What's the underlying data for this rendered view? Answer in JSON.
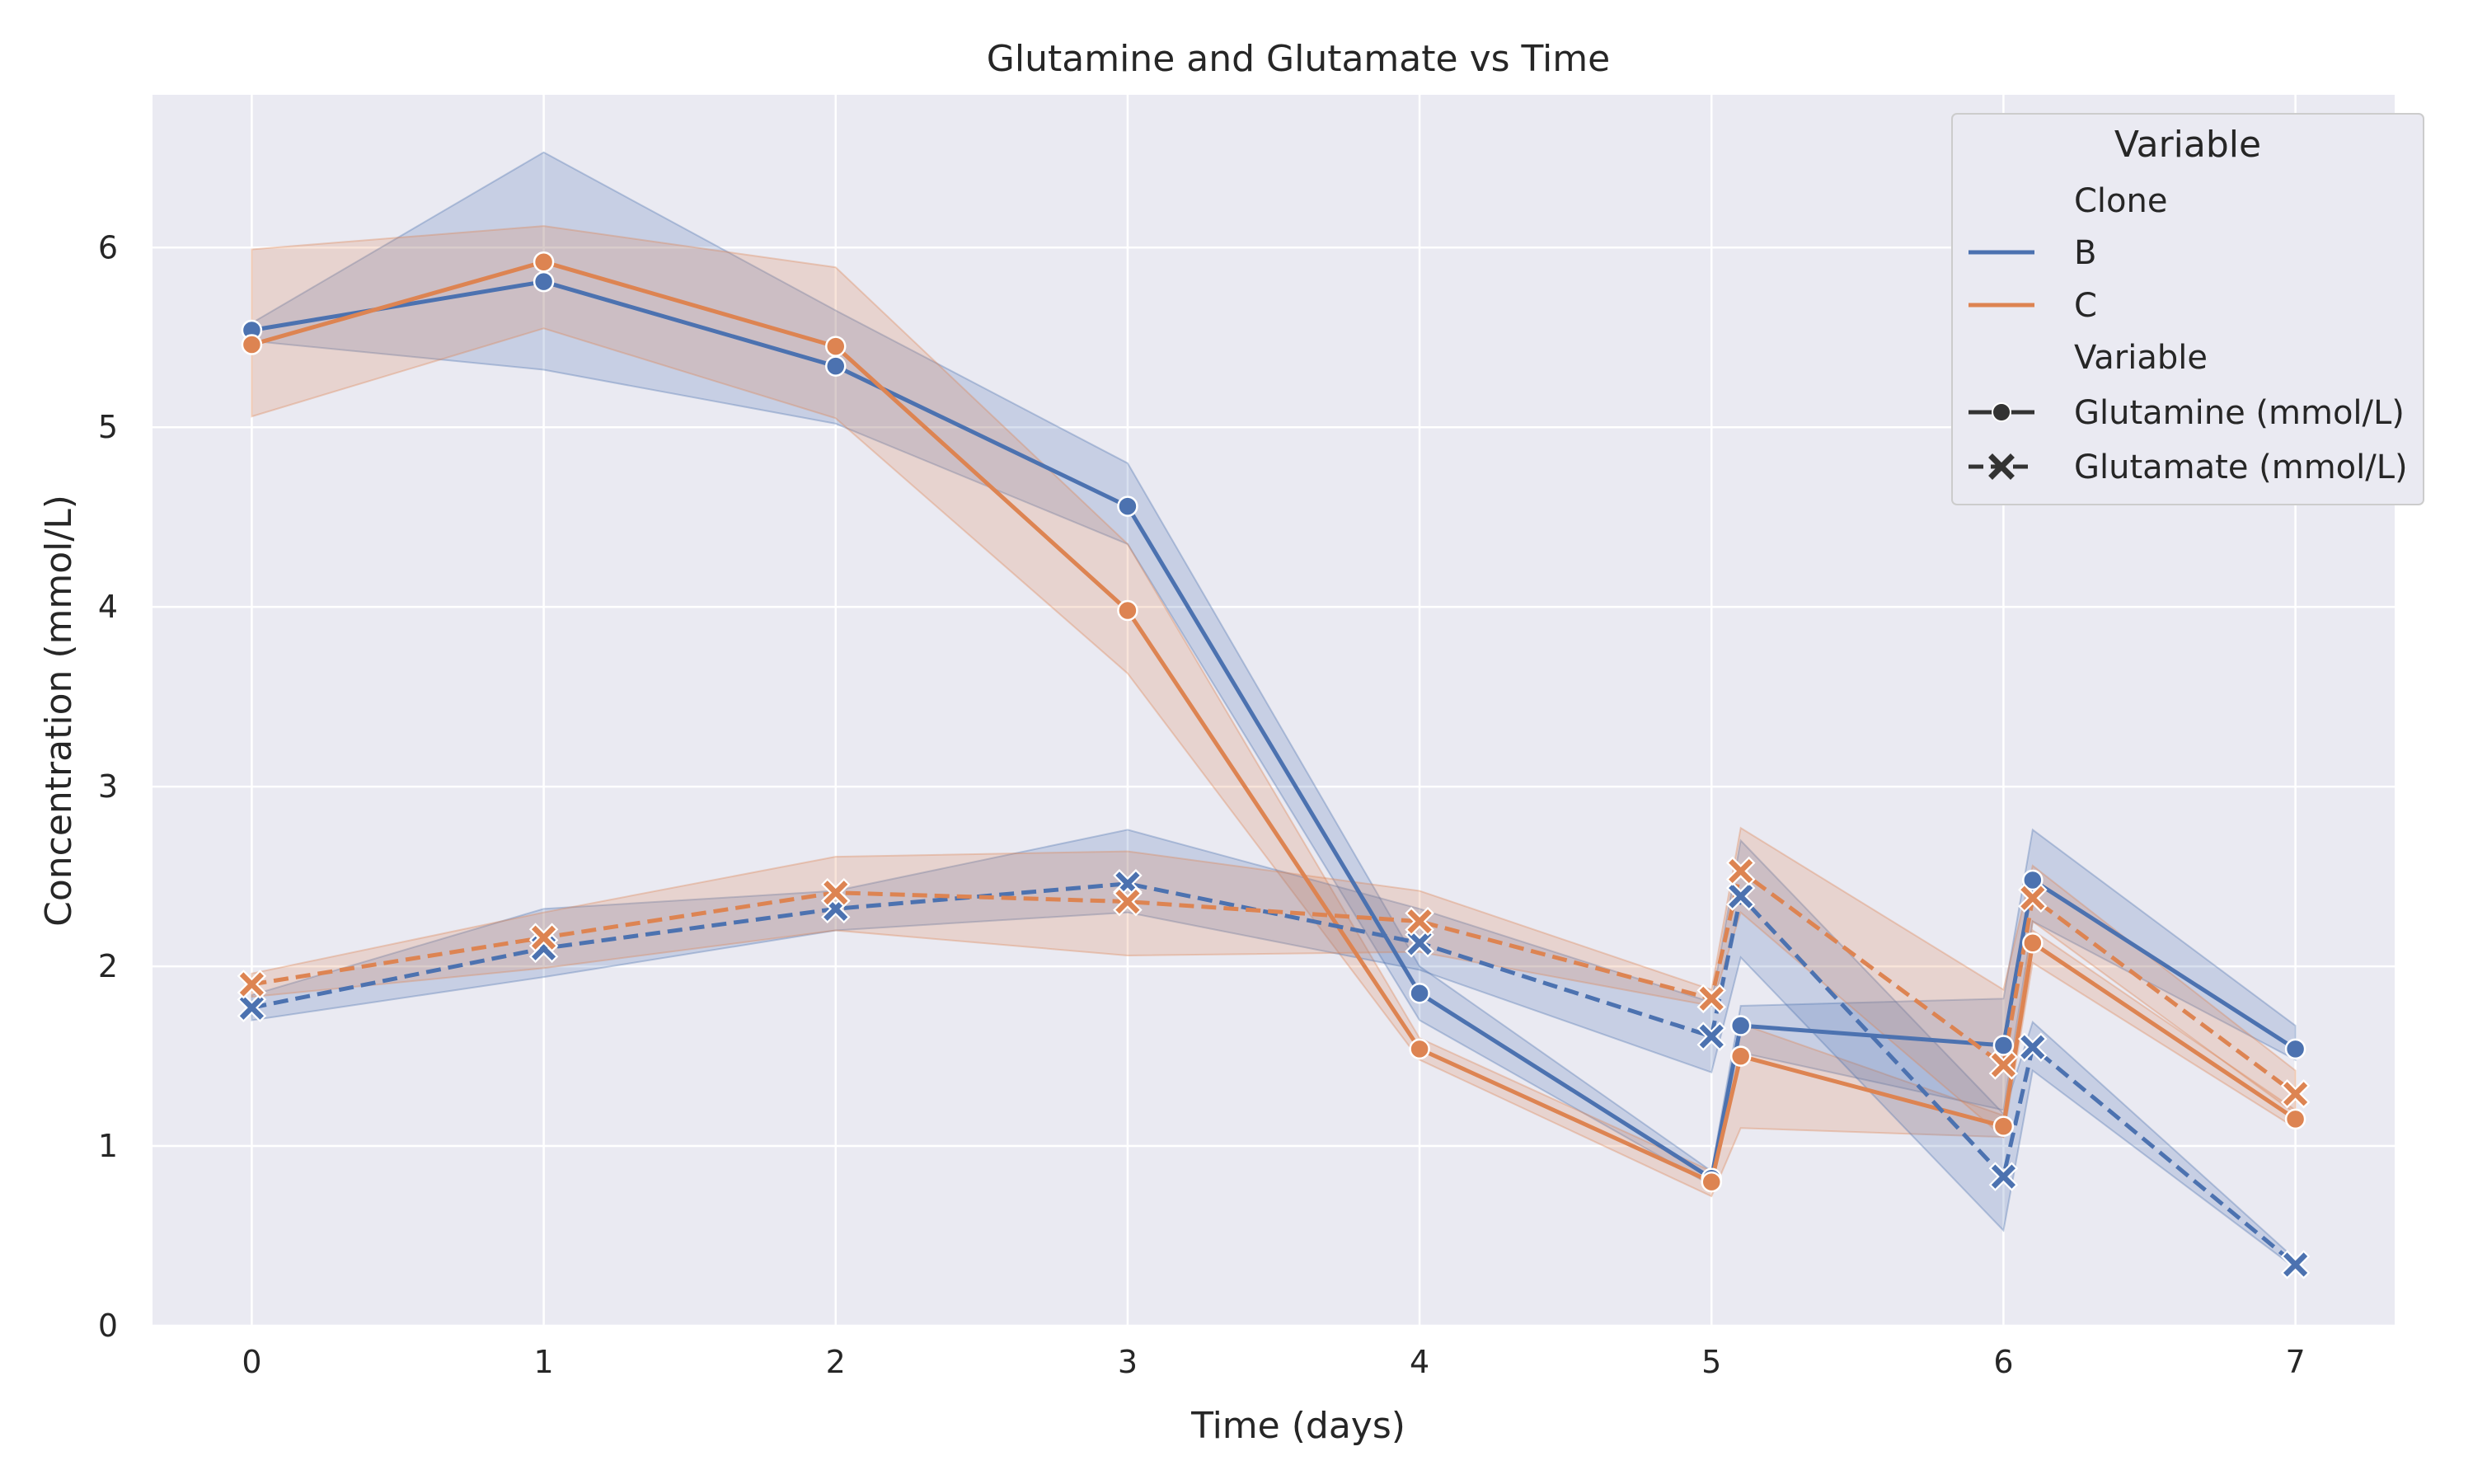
{
  "chart_data": {
    "type": "line",
    "title": "Glutamine and Glutamate vs Time",
    "xlabel": "Time (days)",
    "ylabel": "Concentration (mmol/L)",
    "xlim": [
      -0.34,
      7.34
    ],
    "ylim": [
      0,
      6.85
    ],
    "xticks": [
      "0",
      "1",
      "2",
      "3",
      "4",
      "5",
      "6",
      "7"
    ],
    "yticks": [
      "0",
      "1",
      "2",
      "3",
      "4",
      "5",
      "6"
    ],
    "grid": true,
    "legend": {
      "title": "Variable",
      "placement": "top-right",
      "hue_header": "Clone",
      "style_header": "Variable",
      "clones": [
        {
          "name": "B",
          "color": "#4c72b0"
        },
        {
          "name": "C",
          "color": "#dd8452"
        }
      ],
      "variables": [
        {
          "name": "Glutamine (mmol/L)",
          "marker": "circle",
          "dash": "solid"
        },
        {
          "name": "Glutamate (mmol/L)",
          "marker": "x",
          "dash": "dashed"
        }
      ]
    },
    "series": [
      {
        "clone": "B",
        "variable": "Glutamine (mmol/L)",
        "color": "#4c72b0",
        "marker": "circle",
        "dash": "solid",
        "x": [
          0,
          1,
          2,
          3,
          4,
          5,
          5.1,
          6,
          6.1,
          7
        ],
        "y": [
          5.54,
          5.81,
          5.34,
          4.56,
          1.85,
          0.82,
          1.67,
          1.56,
          2.48,
          1.54
        ],
        "ci_low": [
          5.48,
          5.32,
          5.02,
          4.35,
          1.7,
          0.78,
          1.52,
          1.2,
          2.25,
          1.48
        ],
        "ci_high": [
          5.58,
          6.53,
          5.65,
          4.8,
          2.0,
          0.86,
          1.78,
          1.82,
          2.76,
          1.67
        ]
      },
      {
        "clone": "C",
        "variable": "Glutamine (mmol/L)",
        "color": "#dd8452",
        "marker": "circle",
        "dash": "solid",
        "x": [
          0,
          1,
          2,
          3,
          4,
          5,
          5.1,
          6,
          6.1,
          7
        ],
        "y": [
          5.46,
          5.92,
          5.45,
          3.98,
          1.54,
          0.8,
          1.5,
          1.11,
          2.13,
          1.15
        ],
        "ci_low": [
          5.06,
          5.55,
          5.05,
          3.63,
          1.48,
          0.72,
          1.1,
          1.05,
          2.02,
          1.1
        ],
        "ci_high": [
          5.99,
          6.12,
          5.89,
          4.35,
          1.6,
          0.86,
          1.68,
          1.17,
          2.2,
          1.2
        ]
      },
      {
        "clone": "B",
        "variable": "Glutamate (mmol/L)",
        "color": "#4c72b0",
        "marker": "x",
        "dash": "dashed",
        "x": [
          0,
          1,
          2,
          3,
          4,
          5,
          5.1,
          6,
          6.1,
          7
        ],
        "y": [
          1.77,
          2.1,
          2.32,
          2.46,
          2.13,
          1.61,
          2.39,
          0.83,
          1.55,
          0.34
        ],
        "ci_low": [
          1.7,
          1.94,
          2.2,
          2.3,
          1.98,
          1.41,
          2.05,
          0.53,
          1.42,
          0.32
        ],
        "ci_high": [
          1.84,
          2.32,
          2.42,
          2.76,
          2.32,
          1.8,
          2.7,
          1.18,
          1.69,
          0.37
        ]
      },
      {
        "clone": "C",
        "variable": "Glutamate (mmol/L)",
        "color": "#dd8452",
        "marker": "x",
        "dash": "dashed",
        "x": [
          0,
          1,
          2,
          3,
          4,
          5,
          5.1,
          6,
          6.1,
          7
        ],
        "y": [
          1.9,
          2.16,
          2.41,
          2.36,
          2.25,
          1.82,
          2.53,
          1.45,
          2.38,
          1.29
        ],
        "ci_low": [
          1.83,
          1.99,
          2.2,
          2.06,
          2.08,
          1.78,
          2.3,
          1.05,
          2.25,
          1.18
        ],
        "ci_high": [
          1.96,
          2.3,
          2.61,
          2.64,
          2.42,
          1.87,
          2.77,
          1.87,
          2.56,
          1.42
        ]
      }
    ]
  }
}
